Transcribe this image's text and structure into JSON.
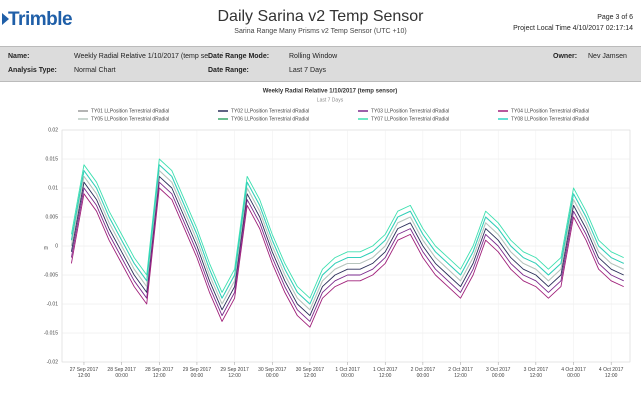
{
  "header": {
    "logo": "Trimble",
    "title": "Daily Sarina v2 Temp Sensor",
    "subtitle": "Sarina Range Many Prisms v2 Temp Sensor (UTC +10)",
    "page": "Page 3 of 6",
    "project_time": "Project Local Time 4/10/2017 02:17:14"
  },
  "info": {
    "name_label": "Name:",
    "name": "Weekly Radial Relative 1/10/2017 (temp sensor)",
    "mode_label": "Date Range Mode:",
    "mode": "Rolling Window",
    "owner_label": "Owner:",
    "owner": "Nev Jamsen",
    "type_label": "Analysis Type:",
    "type": "Normal Chart",
    "range_label": "Date Range:",
    "range": "Last 7 Days"
  },
  "chart_data": {
    "type": "line",
    "title": "Weekly Radial Relative 1/10/2017 (temp sensor)",
    "subtitle": "Last 7 Days",
    "y_label": "m",
    "grid": true,
    "x": [
      "2017-09-27T08:00",
      "2017-09-27T12:00",
      "2017-09-27T16:00",
      "2017-09-27T20:00",
      "2017-09-28T00:00",
      "2017-09-28T04:00",
      "2017-09-28T08:00",
      "2017-09-28T12:00",
      "2017-09-28T16:00",
      "2017-09-28T20:00",
      "2017-09-29T00:00",
      "2017-09-29T04:00",
      "2017-09-29T08:00",
      "2017-09-29T12:00",
      "2017-09-29T16:00",
      "2017-09-29T20:00",
      "2017-09-30T00:00",
      "2017-09-30T04:00",
      "2017-09-30T08:00",
      "2017-09-30T12:00",
      "2017-09-30T16:00",
      "2017-09-30T20:00",
      "2017-10-01T00:00",
      "2017-10-01T04:00",
      "2017-10-01T08:00",
      "2017-10-01T12:00",
      "2017-10-01T16:00",
      "2017-10-01T20:00",
      "2017-10-02T00:00",
      "2017-10-02T04:00",
      "2017-10-02T08:00",
      "2017-10-02T12:00",
      "2017-10-02T16:00",
      "2017-10-02T20:00",
      "2017-10-03T00:00",
      "2017-10-03T04:00",
      "2017-10-03T08:00",
      "2017-10-03T12:00",
      "2017-10-03T16:00",
      "2017-10-03T20:00",
      "2017-10-04T00:00",
      "2017-10-04T04:00",
      "2017-10-04T08:00",
      "2017-10-04T12:00",
      "2017-10-04T16:00"
    ],
    "xlim": [
      "2017-09-27T05:00",
      "2017-10-04T18:00"
    ],
    "xticks": [
      {
        "value": "2017-09-27T12:00",
        "label": "27 Sep 2017 12:00"
      },
      {
        "value": "2017-09-28T00:00",
        "label": "28 Sep 2017 00:00"
      },
      {
        "value": "2017-09-28T12:00",
        "label": "28 Sep 2017 12:00"
      },
      {
        "value": "2017-09-29T00:00",
        "label": "29 Sep 2017 00:00"
      },
      {
        "value": "2017-09-29T12:00",
        "label": "29 Sep 2017 12:00"
      },
      {
        "value": "2017-09-30T00:00",
        "label": "30 Sep 2017 00:00"
      },
      {
        "value": "2017-09-30T12:00",
        "label": "30 Sep 2017 12:00"
      },
      {
        "value": "2017-10-01T00:00",
        "label": "1 Oct 2017 00:00"
      },
      {
        "value": "2017-10-01T12:00",
        "label": "1 Oct 2017 12:00"
      },
      {
        "value": "2017-10-02T00:00",
        "label": "2 Oct 2017 00:00"
      },
      {
        "value": "2017-10-02T12:00",
        "label": "2 Oct 2017 12:00"
      },
      {
        "value": "2017-10-03T00:00",
        "label": "3 Oct 2017 00:00"
      },
      {
        "value": "2017-10-03T12:00",
        "label": "3 Oct 2017 12:00"
      },
      {
        "value": "2017-10-04T00:00",
        "label": "4 Oct 2017 00:00"
      },
      {
        "value": "2017-10-04T12:00",
        "label": "4 Oct 2017 12:00"
      }
    ],
    "ylim": [
      -0.02,
      0.02
    ],
    "yticks": [
      0.02,
      0.015,
      0.01,
      0.005,
      0,
      -0.005,
      -0.01,
      -0.015,
      -0.02
    ],
    "series": [
      {
        "name": "TY01 LLPosition Terrestrial dRadial",
        "color": "#9a9a9a",
        "values": [
          0,
          0.012,
          0.009,
          0.004,
          0,
          -0.004,
          -0.007,
          0.013,
          0.011,
          0.006,
          0.001,
          -0.005,
          -0.01,
          -0.006,
          0.01,
          0.006,
          0,
          -0.005,
          -0.009,
          -0.011,
          -0.006,
          -0.004,
          -0.003,
          -0.003,
          -0.002,
          0,
          0.004,
          0.005,
          0.001,
          -0.002,
          -0.004,
          -0.006,
          -0.002,
          0.004,
          0.002,
          -0.001,
          -0.003,
          -0.004,
          -0.006,
          -0.004,
          0.008,
          0.004,
          -0.001,
          -0.003,
          -0.004
        ]
      },
      {
        "name": "TY02 LLPosition Terrestrial dRadial",
        "color": "#2b2f5a",
        "values": [
          -0.001,
          0.011,
          0.008,
          0.003,
          -0.001,
          -0.005,
          -0.008,
          0.012,
          0.01,
          0.005,
          0,
          -0.006,
          -0.011,
          -0.007,
          0.009,
          0.005,
          -0.001,
          -0.006,
          -0.01,
          -0.012,
          -0.007,
          -0.005,
          -0.004,
          -0.004,
          -0.003,
          -0.001,
          0.003,
          0.004,
          0,
          -0.003,
          -0.005,
          -0.007,
          -0.003,
          0.003,
          0.001,
          -0.002,
          -0.004,
          -0.005,
          -0.007,
          -0.005,
          0.007,
          0.003,
          -0.002,
          -0.004,
          -0.005
        ]
      },
      {
        "name": "TY03 LLPosition Terrestrial dRadial",
        "color": "#7a2a8c",
        "values": [
          -0.002,
          0.01,
          0.007,
          0.002,
          -0.002,
          -0.006,
          -0.009,
          0.011,
          0.009,
          0.004,
          -0.001,
          -0.007,
          -0.012,
          -0.008,
          0.008,
          0.004,
          -0.002,
          -0.007,
          -0.011,
          -0.013,
          -0.008,
          -0.006,
          -0.005,
          -0.005,
          -0.004,
          -0.002,
          0.002,
          0.003,
          -0.001,
          -0.004,
          -0.006,
          -0.008,
          -0.004,
          0.002,
          0,
          -0.003,
          -0.005,
          -0.006,
          -0.008,
          -0.006,
          0.006,
          0.002,
          -0.003,
          -0.005,
          -0.006
        ]
      },
      {
        "name": "TY04 LLPosition Terrestrial dRadial",
        "color": "#a0207a",
        "values": [
          -0.003,
          0.009,
          0.006,
          0.001,
          -0.003,
          -0.007,
          -0.01,
          0.01,
          0.008,
          0.003,
          -0.002,
          -0.008,
          -0.013,
          -0.009,
          0.007,
          0.003,
          -0.003,
          -0.008,
          -0.012,
          -0.014,
          -0.009,
          -0.007,
          -0.006,
          -0.006,
          -0.005,
          -0.003,
          0.001,
          0.002,
          -0.002,
          -0.005,
          -0.007,
          -0.009,
          -0.005,
          0.001,
          -0.001,
          -0.004,
          -0.006,
          -0.007,
          -0.009,
          -0.007,
          0.005,
          0.001,
          -0.004,
          -0.006,
          -0.007
        ]
      },
      {
        "name": "TY05 LLPosition Terrestrial dRadial",
        "color": "#b8c8c0",
        "values": [
          0,
          0.012,
          0.009,
          0.004,
          0,
          -0.004,
          -0.007,
          0.013,
          0.011,
          0.006,
          0.001,
          -0.005,
          -0.01,
          -0.006,
          0.01,
          0.006,
          0,
          -0.005,
          -0.009,
          -0.011,
          -0.006,
          -0.004,
          -0.003,
          -0.003,
          -0.002,
          0,
          0.004,
          0.005,
          0.001,
          -0.002,
          -0.004,
          -0.006,
          -0.002,
          0.004,
          0.002,
          -0.001,
          -0.003,
          -0.004,
          -0.006,
          -0.004,
          0.008,
          0.004,
          -0.001,
          -0.003,
          -0.004
        ]
      },
      {
        "name": "TY06 LLPosition Terrestrial dRadial",
        "color": "#3aa86a",
        "values": [
          0.001,
          0.013,
          0.01,
          0.005,
          0.001,
          -0.003,
          -0.006,
          0.014,
          0.012,
          0.007,
          0.002,
          -0.004,
          -0.009,
          -0.005,
          0.011,
          0.007,
          0.001,
          -0.004,
          -0.008,
          -0.01,
          -0.005,
          -0.003,
          -0.002,
          -0.002,
          -0.001,
          0.001,
          0.005,
          0.006,
          0.002,
          -0.001,
          -0.003,
          -0.005,
          -0.001,
          0.005,
          0.003,
          0,
          -0.002,
          -0.003,
          -0.005,
          -0.003,
          0.009,
          0.005,
          0,
          -0.002,
          -0.003
        ]
      },
      {
        "name": "TY07 LLPosition Terrestrial dRadial",
        "color": "#3de0b0",
        "values": [
          0.002,
          0.014,
          0.011,
          0.006,
          0.002,
          -0.002,
          -0.005,
          0.015,
          0.013,
          0.008,
          0.003,
          -0.003,
          -0.008,
          -0.004,
          0.012,
          0.008,
          0.002,
          -0.003,
          -0.007,
          -0.009,
          -0.004,
          -0.002,
          -0.001,
          -0.001,
          0,
          0.002,
          0.006,
          0.007,
          0.003,
          0,
          -0.002,
          -0.004,
          0,
          0.006,
          0.004,
          0.001,
          -0.001,
          -0.002,
          -0.004,
          -0.002,
          0.01,
          0.006,
          0.001,
          -0.001,
          -0.002
        ]
      },
      {
        "name": "TY08 LLPosition Terrestrial dRadial",
        "color": "#2fd4c4",
        "values": [
          0.001,
          0.013,
          0.01,
          0.005,
          0.001,
          -0.003,
          -0.006,
          0.014,
          0.012,
          0.007,
          0.002,
          -0.004,
          -0.009,
          -0.005,
          0.011,
          0.007,
          0.001,
          -0.004,
          -0.008,
          -0.01,
          -0.005,
          -0.003,
          -0.002,
          -0.002,
          -0.001,
          0.001,
          0.005,
          0.006,
          0.002,
          -0.001,
          -0.003,
          -0.005,
          -0.001,
          0.005,
          0.003,
          0,
          -0.002,
          -0.003,
          -0.005,
          -0.003,
          0.009,
          0.005,
          0,
          -0.002,
          -0.003
        ]
      }
    ]
  }
}
